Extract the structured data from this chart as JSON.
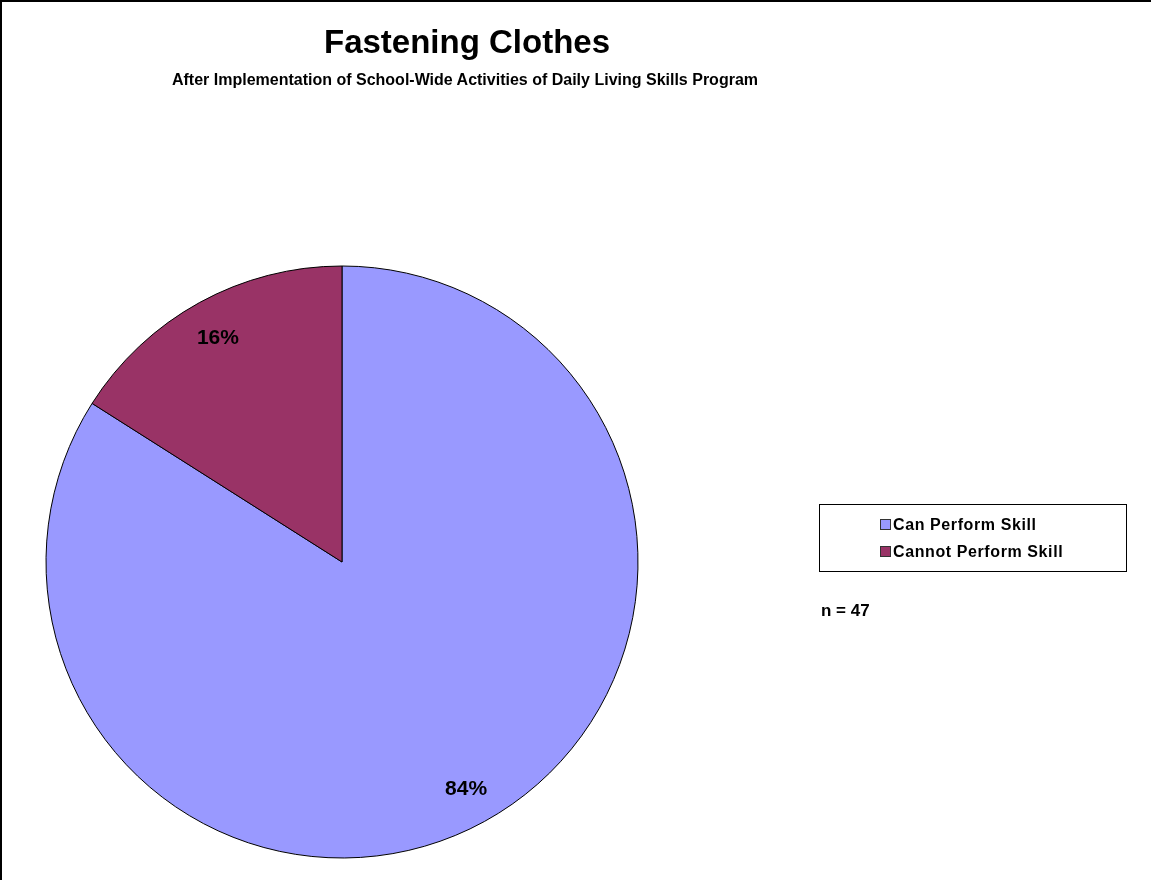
{
  "chart_data": {
    "type": "pie",
    "title": "Fastening Clothes",
    "subtitle": "After Implementation of School-Wide Activities of Daily Living Skills Program",
    "categories": [
      "Can Perform Skill",
      "Cannot Perform Skill"
    ],
    "values": [
      84,
      16
    ],
    "colors": [
      "#9999ff",
      "#993366"
    ],
    "value_labels": [
      "84%",
      "16%"
    ],
    "legend": "right",
    "annotations": [
      "n = 47"
    ]
  }
}
